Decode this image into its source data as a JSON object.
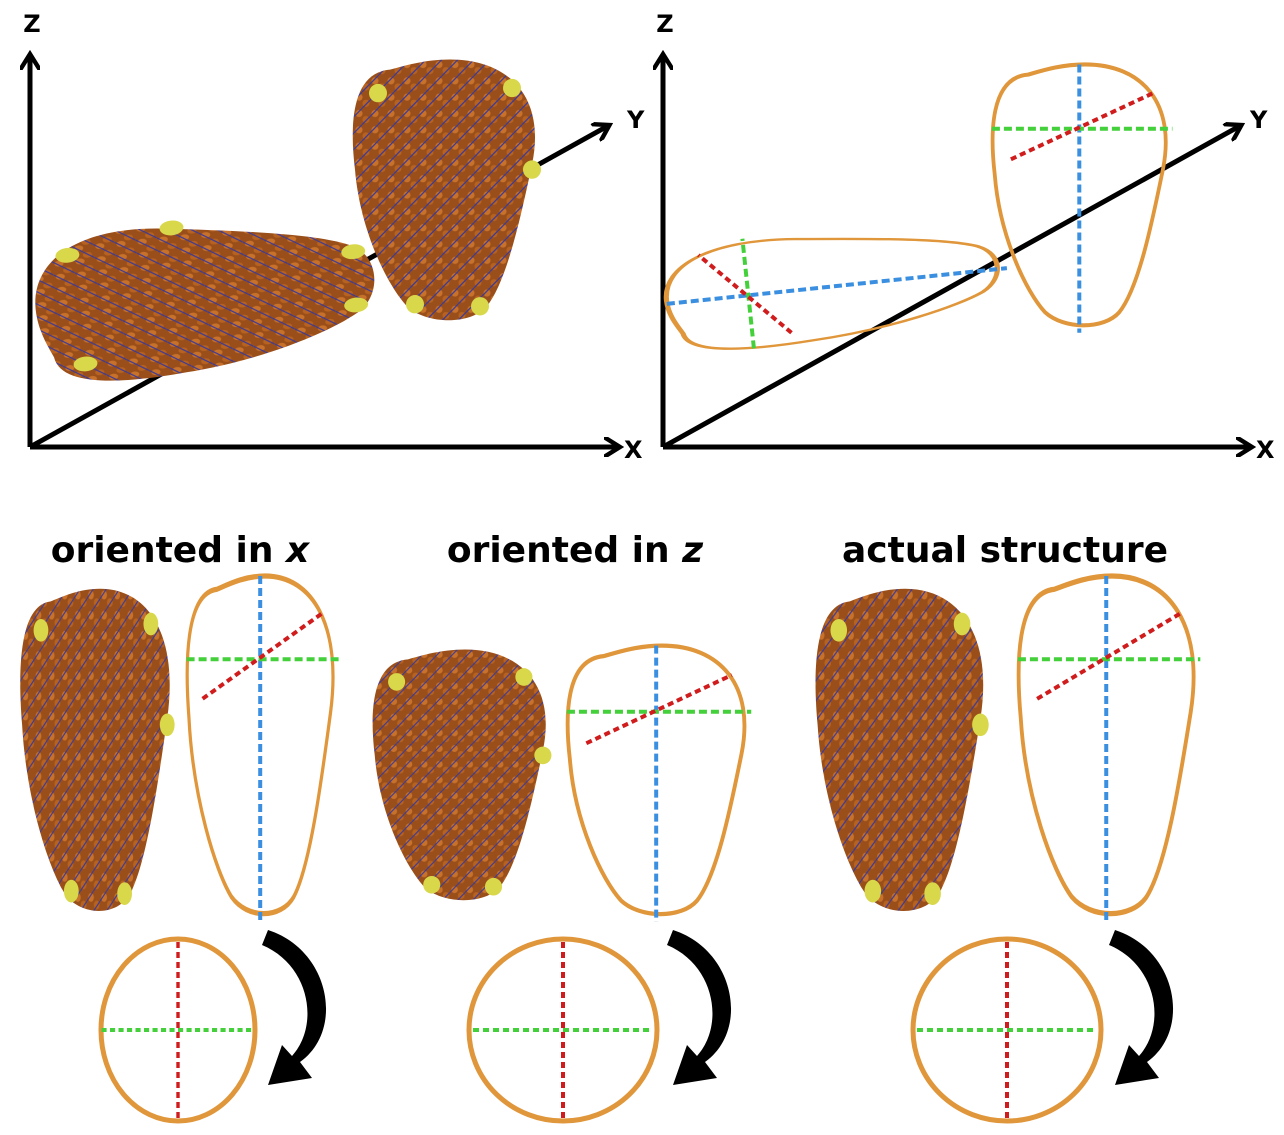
{
  "panels": [
    {
      "axes": {
        "z": "Z",
        "y": "Y",
        "x": "X"
      }
    },
    {
      "axes": {
        "z": "Z",
        "y": "Y",
        "x": "X"
      }
    }
  ],
  "captions": [
    {
      "text": "oriented in ",
      "variable": "x"
    },
    {
      "text": "oriented in ",
      "variable": "z"
    },
    {
      "text": "actual structure"
    }
  ]
}
